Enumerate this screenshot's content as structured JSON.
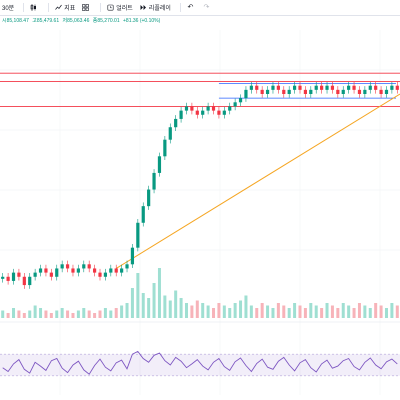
{
  "toolbar": {
    "interval_label": "30분",
    "indicator_label": "지표",
    "alert_label": "얼러트",
    "replay_label": "리플레이",
    "undo_icon": "undo-icon",
    "redo_icon": "redo-icon"
  },
  "ohlc": {
    "open": "시85,108.47",
    "high": "고85,479.61",
    "low": "저85,063.46",
    "close": "종85,270.01",
    "change": "+81.36 (+0.10%)"
  },
  "colors": {
    "up": "#089981",
    "down": "#f23645",
    "resistance": "#f23645",
    "range": "#2962ff",
    "trendline": "#f5a623",
    "rsi_band": "#7e57c2"
  },
  "chart_data": [
    {
      "type": "line",
      "series": [
        {
          "values": [
            63,
            62,
            64,
            63,
            61,
            63,
            64,
            65,
            64,
            63,
            65,
            66,
            65,
            64,
            65,
            66,
            65,
            64,
            63,
            64,
            65,
            64,
            65,
            66,
            70,
            76,
            80,
            84,
            88,
            92,
            96,
            99,
            101,
            103,
            104,
            103,
            102,
            103,
            104,
            103,
            102,
            103,
            104,
            105,
            106,
            108,
            109,
            108,
            107,
            108,
            109,
            108,
            107,
            108,
            109,
            108,
            107,
            108,
            109,
            108,
            109,
            108,
            107,
            108,
            109,
            108,
            107,
            108,
            109,
            108,
            107,
            108,
            109,
            108
          ]
        }
      ],
      "horizontal_levels": [
        112,
        110,
        104
      ],
      "range_box": [
        106,
        109.5
      ],
      "trendline": [
        [
          21,
          65
        ],
        [
          73,
          107
        ]
      ]
    },
    {
      "type": "bar",
      "values": [
        3,
        2,
        4,
        3,
        2,
        3,
        5,
        4,
        3,
        2,
        3,
        4,
        3,
        2,
        3,
        4,
        3,
        2,
        3,
        4,
        3,
        4,
        5,
        6,
        12,
        18,
        10,
        8,
        14,
        20,
        9,
        7,
        11,
        8,
        6,
        5,
        7,
        6,
        5,
        4,
        6,
        5,
        4,
        6,
        7,
        9,
        5,
        4,
        6,
        5,
        4,
        6,
        5,
        4,
        6,
        5,
        4,
        6,
        5,
        4,
        6,
        5,
        4,
        6,
        5,
        4,
        6,
        5,
        4,
        6,
        5,
        4,
        6,
        5
      ]
    },
    {
      "type": "line",
      "series": [
        {
          "values": [
            45,
            38,
            52,
            60,
            42,
            35,
            55,
            48,
            40,
            58,
            62,
            44,
            36,
            50,
            57,
            41,
            33,
            49,
            61,
            46,
            39,
            54,
            59,
            43,
            70,
            75,
            62,
            55,
            68,
            72,
            58,
            50,
            64,
            57,
            45,
            52,
            60,
            48,
            41,
            55,
            62,
            47,
            40,
            56,
            63,
            49,
            38,
            53,
            61,
            46,
            42,
            57,
            64,
            50,
            39,
            54,
            60,
            45,
            37,
            52,
            59,
            44,
            48,
            58,
            62,
            47,
            41,
            55,
            63,
            50,
            43,
            56,
            61,
            52
          ]
        }
      ],
      "band": [
        30,
        70
      ]
    }
  ]
}
